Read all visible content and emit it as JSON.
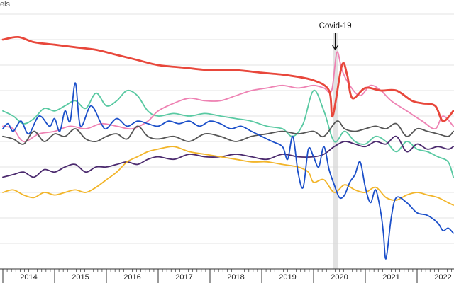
{
  "chart_data": {
    "type": "line",
    "title": "",
    "ylabel": "els",
    "xlabel": "",
    "x_range": [
      2014.0,
      2022.7
    ],
    "ylim": [
      0,
      100
    ],
    "grid": true,
    "x_ticks": [
      "2014",
      "2015",
      "2016",
      "2017",
      "2018",
      "2019",
      "2020",
      "2021",
      "2022"
    ],
    "annotation": {
      "label": "Covid-19",
      "x": 2020.42,
      "band": [
        2020.37,
        2020.48
      ]
    },
    "series": [
      {
        "name": "red",
        "color": "#e8473b",
        "width": 2.8,
        "x": [
          2014.0,
          2014.3,
          2014.6,
          2015.0,
          2015.4,
          2015.8,
          2016.2,
          2016.6,
          2017.0,
          2017.5,
          2018.0,
          2018.5,
          2019.0,
          2019.5,
          2020.0,
          2020.3,
          2020.37,
          2020.55,
          2020.65,
          2020.75,
          2021.0,
          2021.3,
          2021.6,
          2021.9,
          2022.1,
          2022.35,
          2022.5,
          2022.7
        ],
        "y": [
          90,
          91,
          89,
          88,
          87,
          86,
          84,
          82,
          80,
          79,
          78,
          78,
          77,
          76,
          74,
          70,
          60,
          80,
          76,
          67,
          71,
          70,
          70,
          66,
          65,
          64,
          58,
          62
        ]
      },
      {
        "name": "pink",
        "color": "#ee82b3",
        "width": 1.8,
        "x": [
          2014.0,
          2014.2,
          2014.4,
          2014.7,
          2015.0,
          2015.3,
          2015.6,
          2015.9,
          2016.2,
          2016.5,
          2016.8,
          2017.0,
          2017.3,
          2017.6,
          2017.9,
          2018.2,
          2018.5,
          2018.8,
          2019.1,
          2019.4,
          2019.7,
          2020.0,
          2020.2,
          2020.35,
          2020.45,
          2020.55,
          2020.7,
          2020.9,
          2021.1,
          2021.3,
          2021.5,
          2021.8,
          2022.1,
          2022.35,
          2022.5,
          2022.7
        ],
        "y": [
          56,
          55,
          50,
          53,
          54,
          56,
          55,
          57,
          56,
          55,
          58,
          62,
          65,
          67,
          66,
          66,
          68,
          70,
          71,
          72,
          71,
          72,
          71,
          70,
          85,
          78,
          72,
          68,
          72,
          70,
          66,
          62,
          58,
          55,
          60,
          56
        ]
      },
      {
        "name": "teal",
        "color": "#59c9a2",
        "width": 1.8,
        "x": [
          2014.0,
          2014.2,
          2014.4,
          2014.6,
          2014.8,
          2015.0,
          2015.2,
          2015.4,
          2015.6,
          2015.8,
          2016.0,
          2016.2,
          2016.4,
          2016.6,
          2016.8,
          2017.0,
          2017.3,
          2017.6,
          2017.9,
          2018.2,
          2018.5,
          2018.8,
          2019.1,
          2019.4,
          2019.6,
          2019.8,
          2020.0,
          2020.2,
          2020.4,
          2020.6,
          2020.8,
          2021.0,
          2021.2,
          2021.4,
          2021.6,
          2021.8,
          2022.0,
          2022.2,
          2022.4,
          2022.6,
          2022.7
        ],
        "y": [
          62,
          60,
          57,
          59,
          63,
          62,
          64,
          66,
          63,
          69,
          64,
          66,
          70,
          68,
          62,
          60,
          61,
          60,
          61,
          60,
          59,
          58,
          56,
          55,
          52,
          57,
          70,
          62,
          50,
          54,
          50,
          49,
          52,
          50,
          46,
          50,
          47,
          46,
          44,
          42,
          36
        ]
      },
      {
        "name": "dark_grey",
        "color": "#555555",
        "width": 1.8,
        "x": [
          2014.0,
          2014.2,
          2014.4,
          2014.6,
          2014.8,
          2015.0,
          2015.2,
          2015.4,
          2015.6,
          2015.8,
          2016.0,
          2016.2,
          2016.4,
          2016.6,
          2016.8,
          2017.0,
          2017.3,
          2017.6,
          2017.9,
          2018.2,
          2018.5,
          2018.8,
          2019.1,
          2019.4,
          2019.7,
          2020.0,
          2020.2,
          2020.45,
          2020.6,
          2020.8,
          2021.0,
          2021.2,
          2021.4,
          2021.6,
          2021.8,
          2022.0,
          2022.2,
          2022.4,
          2022.6,
          2022.7
        ],
        "y": [
          52,
          51,
          49,
          54,
          50,
          53,
          52,
          55,
          51,
          50,
          52,
          53,
          51,
          56,
          52,
          51,
          52,
          50,
          53,
          52,
          50,
          52,
          53,
          54,
          53,
          54,
          52,
          58,
          55,
          54,
          55,
          56,
          55,
          57,
          52,
          55,
          54,
          53,
          52,
          54
        ]
      },
      {
        "name": "purple",
        "color": "#4b2a6e",
        "width": 1.8,
        "x": [
          2014.0,
          2014.2,
          2014.4,
          2014.6,
          2014.8,
          2015.0,
          2015.2,
          2015.4,
          2015.6,
          2015.8,
          2016.0,
          2016.2,
          2016.4,
          2016.6,
          2016.8,
          2017.0,
          2017.3,
          2017.6,
          2017.9,
          2018.2,
          2018.5,
          2018.8,
          2019.1,
          2019.4,
          2019.7,
          2020.0,
          2020.2,
          2020.4,
          2020.6,
          2020.8,
          2021.0,
          2021.2,
          2021.4,
          2021.6,
          2021.8,
          2022.0,
          2022.2,
          2022.4,
          2022.6,
          2022.7
        ],
        "y": [
          36,
          37,
          38,
          36,
          39,
          38,
          40,
          41,
          38,
          40,
          40,
          41,
          42,
          41,
          43,
          44,
          43,
          45,
          44,
          44,
          45,
          44,
          43,
          45,
          44,
          44,
          45,
          48,
          50,
          49,
          48,
          50,
          49,
          52,
          46,
          49,
          47,
          48,
          47,
          48
        ]
      },
      {
        "name": "yellow",
        "color": "#f2b52a",
        "width": 1.8,
        "x": [
          2014.0,
          2014.2,
          2014.4,
          2014.6,
          2014.8,
          2015.0,
          2015.2,
          2015.4,
          2015.6,
          2015.8,
          2016.0,
          2016.2,
          2016.4,
          2016.6,
          2016.8,
          2017.0,
          2017.3,
          2017.6,
          2017.9,
          2018.2,
          2018.5,
          2018.8,
          2019.1,
          2019.4,
          2019.7,
          2019.9,
          2020.0,
          2020.2,
          2020.4,
          2020.6,
          2020.8,
          2021.0,
          2021.2,
          2021.4,
          2021.6,
          2021.8,
          2022.0,
          2022.2,
          2022.4,
          2022.6,
          2022.7
        ],
        "y": [
          30,
          31,
          29,
          28,
          30,
          29,
          30,
          31,
          30,
          32,
          35,
          38,
          42,
          44,
          46,
          47,
          48,
          46,
          45,
          44,
          43,
          42,
          42,
          41,
          40,
          38,
          34,
          35,
          30,
          33,
          31,
          30,
          32,
          28,
          27,
          29,
          30,
          29,
          28,
          26,
          25
        ]
      },
      {
        "name": "blue",
        "color": "#1b4fc9",
        "width": 1.8,
        "x": [
          2014.0,
          2014.1,
          2014.2,
          2014.35,
          2014.5,
          2014.7,
          2014.9,
          2015.0,
          2015.1,
          2015.2,
          2015.3,
          2015.4,
          2015.5,
          2015.7,
          2015.9,
          2016.0,
          2016.2,
          2016.4,
          2016.6,
          2016.8,
          2017.0,
          2017.2,
          2017.4,
          2017.6,
          2017.8,
          2018.0,
          2018.2,
          2018.4,
          2018.6,
          2018.8,
          2019.0,
          2019.2,
          2019.4,
          2019.5,
          2019.6,
          2019.7,
          2019.8,
          2019.9,
          2020.0,
          2020.1,
          2020.2,
          2020.3,
          2020.4,
          2020.5,
          2020.6,
          2020.7,
          2020.8,
          2020.9,
          2021.0,
          2021.1,
          2021.2,
          2021.3,
          2021.35,
          2021.4,
          2021.5,
          2021.6,
          2021.8,
          2022.0,
          2022.2,
          2022.4,
          2022.5,
          2022.6,
          2022.7
        ],
        "y": [
          55,
          57,
          54,
          58,
          53,
          60,
          56,
          59,
          54,
          62,
          58,
          73,
          56,
          64,
          57,
          55,
          59,
          56,
          58,
          57,
          56,
          58,
          57,
          58,
          56,
          58,
          57,
          55,
          56,
          54,
          52,
          50,
          48,
          43,
          52,
          38,
          32,
          47,
          44,
          40,
          48,
          39,
          33,
          28,
          29,
          34,
          37,
          42,
          32,
          26,
          31,
          22,
          14,
          4,
          20,
          28,
          26,
          22,
          21,
          18,
          15,
          16,
          14
        ]
      }
    ]
  }
}
